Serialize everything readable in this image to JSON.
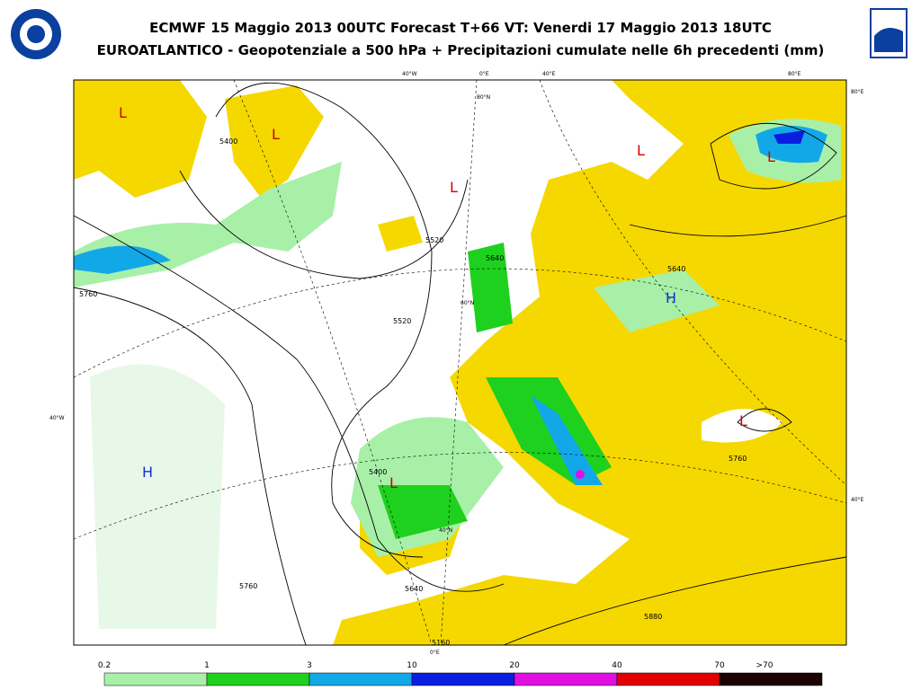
{
  "header": {
    "title_line1": "ECMWF 15 Maggio 2013 00UTC Forecast T+66 VT: Venerdi 17 Maggio 2013 18UTC",
    "title_line2": "EUROATLANTICO - Geopotenziale a 500 hPa + Precipitazioni cumulate nelle 6h precedenti (mm)"
  },
  "map": {
    "graticule_labels": [
      "40°W",
      "0°E",
      "40°E",
      "80°E",
      "80°E",
      "80°N",
      "60°N",
      "40°N",
      "40°W",
      "40°E",
      "0°E"
    ],
    "pressure_centers": [
      "L",
      "L",
      "L",
      "L",
      "L",
      "L",
      "L",
      "H",
      "H"
    ],
    "contour_labels": [
      "5400",
      "5520",
      "5640",
      "5760",
      "5520",
      "5640",
      "5760",
      "5880",
      "5640",
      "5760",
      "5400",
      "5160"
    ]
  },
  "legend": {
    "labels": [
      "0.2",
      "1",
      "3",
      "10",
      "20",
      "40",
      "70",
      ">70"
    ],
    "colors": [
      "#a8f0a8",
      "#1ed11e",
      "#12a8e8",
      "#0a1ee0",
      "#e010e0",
      "#e00000",
      "#1e0000"
    ]
  }
}
